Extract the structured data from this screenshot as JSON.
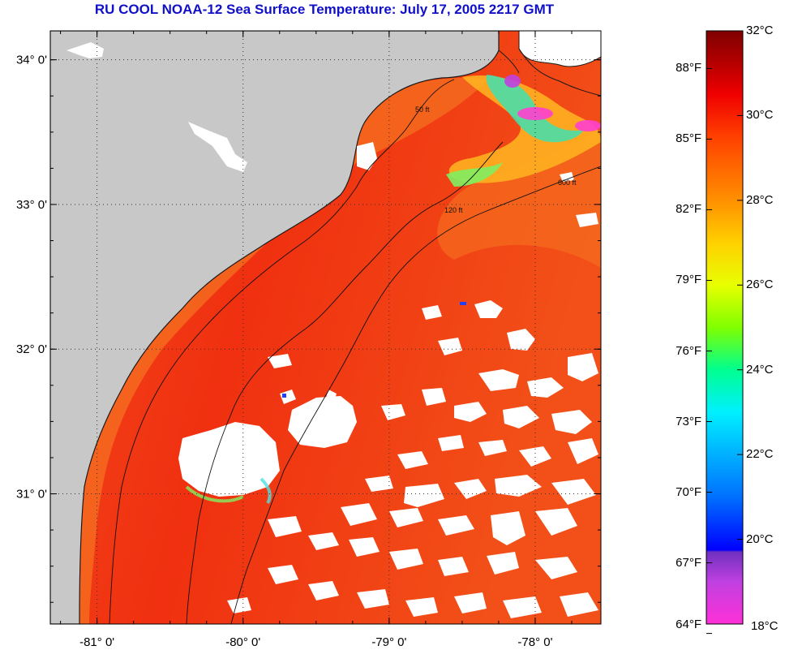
{
  "title": "RU COOL  NOAA-12  Sea Surface Temperature:  July 17, 2005 2217 GMT",
  "map": {
    "lon_range": [
      -81.32,
      -77.55
    ],
    "lat_range": [
      30.1,
      34.2
    ],
    "latitude_ticks": [
      {
        "value": 34,
        "label": "34° 0'"
      },
      {
        "value": 33,
        "label": "33° 0'"
      },
      {
        "value": 32,
        "label": "32° 0'"
      },
      {
        "value": 31,
        "label": "31° 0'"
      }
    ],
    "longitude_ticks": [
      {
        "value": -81,
        "label": "-81° 0'"
      },
      {
        "value": -80,
        "label": "-80° 0'"
      },
      {
        "value": -79,
        "label": "-79° 0'"
      },
      {
        "value": -78,
        "label": "-78° 0'"
      }
    ],
    "grid": "dotted",
    "colors": {
      "land": "#c8c8c8",
      "water": "#f03a14",
      "cloud": "#ffffff",
      "coast": "#1a1a1a"
    },
    "isobaths": [
      {
        "label": "50 ft"
      },
      {
        "label": "120 ft"
      },
      {
        "label": "600 ft"
      }
    ]
  },
  "colorbar": {
    "fahrenheit_labels": [
      {
        "value": 88,
        "label": "88°F"
      },
      {
        "value": 85,
        "label": "85°F"
      },
      {
        "value": 82,
        "label": "82°F"
      },
      {
        "value": 79,
        "label": "79°F"
      },
      {
        "value": 76,
        "label": "76°F"
      },
      {
        "value": 73,
        "label": "73°F"
      },
      {
        "value": 70,
        "label": "70°F"
      },
      {
        "value": 67,
        "label": "67°F"
      },
      {
        "value": 64,
        "label": "64°F"
      }
    ],
    "celsius_labels": [
      {
        "value": 32,
        "label": "32°C"
      },
      {
        "value": 30,
        "label": "30°C"
      },
      {
        "value": 28,
        "label": "28°C"
      },
      {
        "value": 26,
        "label": "26°C"
      },
      {
        "value": 24,
        "label": "24°C"
      },
      {
        "value": 22,
        "label": "22°C"
      },
      {
        "value": 20,
        "label": "20°C"
      },
      {
        "value": 18,
        "label": "18°C"
      }
    ],
    "range_c": [
      18,
      32
    ],
    "stops": [
      {
        "c": 18,
        "color": "#ff30d8"
      },
      {
        "c": 19,
        "color": "#c040e0"
      },
      {
        "c": 19.7,
        "color": "#7030c0"
      },
      {
        "c": 19.75,
        "color": "#0000ff"
      },
      {
        "c": 21,
        "color": "#0070ff"
      },
      {
        "c": 23,
        "color": "#00f0ff"
      },
      {
        "c": 24,
        "color": "#00ff90"
      },
      {
        "c": 25,
        "color": "#80ff00"
      },
      {
        "c": 26,
        "color": "#e8ff00"
      },
      {
        "c": 27,
        "color": "#ffd000"
      },
      {
        "c": 28,
        "color": "#ff9000"
      },
      {
        "c": 29.5,
        "color": "#ff4000"
      },
      {
        "c": 30.5,
        "color": "#f00000"
      },
      {
        "c": 31.3,
        "color": "#b00000"
      },
      {
        "c": 32,
        "color": "#800000"
      }
    ]
  }
}
